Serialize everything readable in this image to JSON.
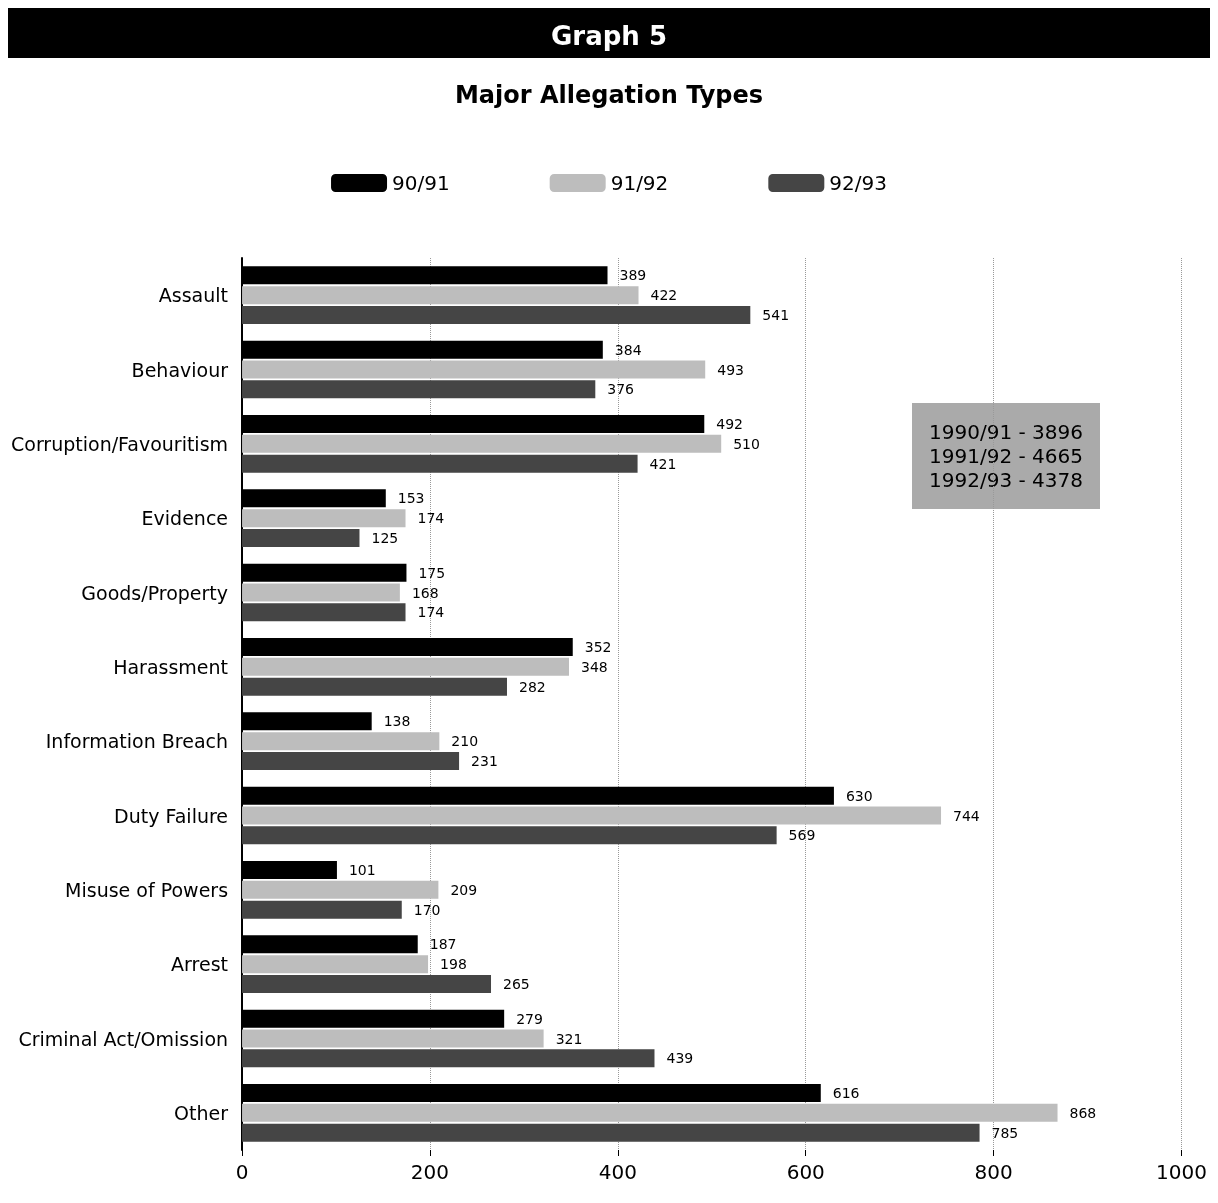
{
  "chart_data": {
    "type": "bar",
    "orientation": "horizontal",
    "title": "Graph 5",
    "subtitle": "Major Allegation Types",
    "categories": [
      "Assault",
      "Behaviour",
      "Corruption/Favouritism",
      "Evidence",
      "Goods/Property",
      "Harassment",
      "Information Breach",
      "Duty Failure",
      "Misuse of Powers",
      "Arrest",
      "Criminal Act/Omission",
      "Other"
    ],
    "series": [
      {
        "name": "90/91",
        "color": "#000000",
        "values": [
          389,
          384,
          492,
          153,
          175,
          352,
          138,
          630,
          101,
          187,
          279,
          616
        ]
      },
      {
        "name": "91/92",
        "color": "#bdbdbd",
        "values": [
          422,
          493,
          510,
          174,
          168,
          348,
          210,
          744,
          209,
          198,
          321,
          868
        ]
      },
      {
        "name": "92/93",
        "color": "#454545",
        "values": [
          541,
          376,
          421,
          125,
          174,
          282,
          231,
          569,
          170,
          265,
          439,
          785
        ]
      }
    ],
    "xlim": [
      0,
      1000
    ],
    "xticks": [
      0,
      200,
      400,
      600,
      800,
      1000
    ],
    "grid": "x",
    "legend": "top",
    "data_labels": true,
    "annotations": [
      "1990/91 - 3896",
      "1991/92 - 4665",
      "1992/93 - 4378"
    ]
  }
}
